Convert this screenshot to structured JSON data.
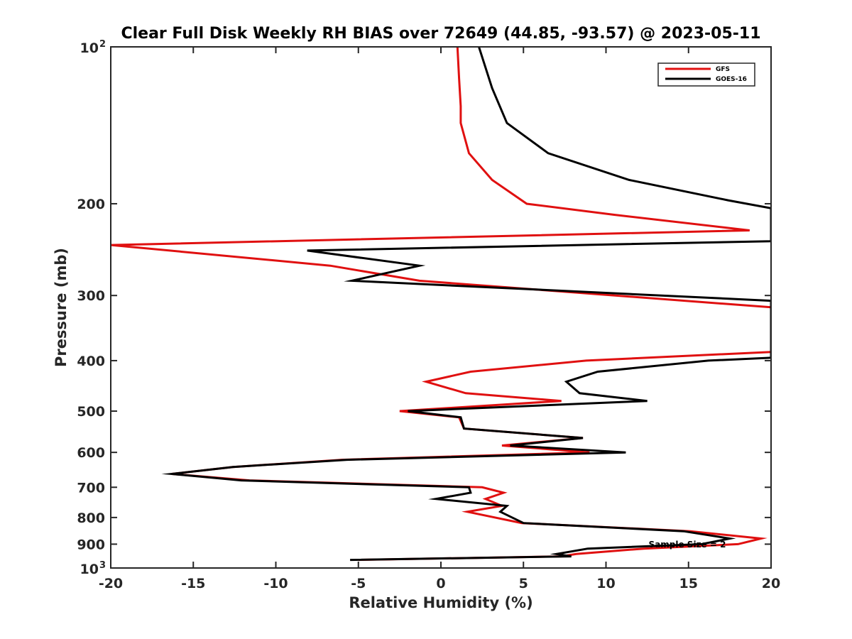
{
  "chart_data": {
    "type": "line",
    "title": "Clear Full Disk Weekly RH BIAS over 72649 (44.85, -93.57) @ 2023-05-11",
    "xlabel": "Relative Humidity (%)",
    "ylabel": "Pressure (mb)",
    "xlim": [
      -20,
      20
    ],
    "ylim": [
      100,
      1000
    ],
    "y_scale": "log",
    "y_reversed": true,
    "x_ticks": [
      -20,
      -15,
      -10,
      -5,
      0,
      5,
      10,
      15,
      20
    ],
    "x_tick_labels": [
      "-20",
      "-15",
      "-10",
      "-5",
      "0",
      "5",
      "10",
      "15",
      "20"
    ],
    "y_ticks": [
      200,
      300,
      400,
      500,
      600,
      700,
      800,
      900
    ],
    "y_tick_labels": [
      "200",
      "300",
      "400",
      "500",
      "600",
      "700",
      "800",
      "900"
    ],
    "y_edge_labels": [
      {
        "value": 100,
        "base": "10",
        "exp": "2"
      },
      {
        "value": 1000,
        "base": "10",
        "exp": "3"
      }
    ],
    "grid": false,
    "legend_position": "top-right",
    "annotation": "Sample Size = 2",
    "series": [
      {
        "name": "GFS",
        "color": "#e01010",
        "points": [
          [
            1.0,
            100
          ],
          [
            1.1,
            115
          ],
          [
            1.2,
            130
          ],
          [
            1.2,
            140
          ],
          [
            1.7,
            160
          ],
          [
            3.1,
            180
          ],
          [
            5.2,
            200
          ],
          [
            10.5,
            210
          ],
          [
            18.7,
            225
          ],
          [
            -20.0,
            240
          ],
          [
            -6.7,
            263
          ],
          [
            -1.3,
            281
          ],
          [
            20.0,
            316
          ],
          [
            20.0,
            385
          ],
          [
            8.8,
            400
          ],
          [
            1.8,
            420
          ],
          [
            -0.9,
            439
          ],
          [
            1.5,
            462
          ],
          [
            7.3,
            478
          ],
          [
            -2.5,
            500
          ],
          [
            1.1,
            514
          ],
          [
            1.4,
            540
          ],
          [
            8.6,
            563
          ],
          [
            3.7,
            582
          ],
          [
            9.0,
            600
          ],
          [
            -6.0,
            620
          ],
          [
            -12.6,
            640
          ],
          [
            -16.3,
            660
          ],
          [
            -11.6,
            679
          ],
          [
            2.5,
            700
          ],
          [
            3.8,
            717
          ],
          [
            2.7,
            737
          ],
          [
            3.7,
            760
          ],
          [
            1.6,
            780
          ],
          [
            4.9,
            820
          ],
          [
            15.1,
            850
          ],
          [
            19.4,
            878
          ],
          [
            18.0,
            900
          ],
          [
            12.3,
            918
          ],
          [
            8.2,
            940
          ],
          [
            7.3,
            950
          ],
          [
            -5.0,
            965
          ]
        ]
      },
      {
        "name": "GOES-16",
        "color": "#000000",
        "points": [
          [
            2.3,
            100
          ],
          [
            3.1,
            120
          ],
          [
            4.0,
            140
          ],
          [
            6.5,
            160
          ],
          [
            11.4,
            180
          ],
          [
            17.4,
            197
          ],
          [
            20.0,
            204
          ],
          [
            20.0,
            236
          ],
          [
            -8.1,
            246
          ],
          [
            -1.3,
            263
          ],
          [
            -5.4,
            281
          ],
          [
            20.0,
            307
          ],
          [
            20.0,
            395
          ],
          [
            16.2,
            400
          ],
          [
            9.5,
            420
          ],
          [
            7.6,
            439
          ],
          [
            8.4,
            462
          ],
          [
            12.5,
            478
          ],
          [
            -2.0,
            500
          ],
          [
            1.2,
            514
          ],
          [
            1.4,
            540
          ],
          [
            8.6,
            563
          ],
          [
            4.2,
            582
          ],
          [
            11.2,
            600
          ],
          [
            -5.7,
            620
          ],
          [
            -12.6,
            640
          ],
          [
            -16.3,
            660
          ],
          [
            -12.1,
            679
          ],
          [
            1.7,
            700
          ],
          [
            1.8,
            717
          ],
          [
            -0.3,
            737
          ],
          [
            4.0,
            760
          ],
          [
            3.6,
            780
          ],
          [
            5.0,
            820
          ],
          [
            14.7,
            850
          ],
          [
            17.5,
            878
          ],
          [
            15.8,
            900
          ],
          [
            8.9,
            918
          ],
          [
            7.0,
            940
          ],
          [
            7.9,
            950
          ],
          [
            -5.5,
            965
          ]
        ]
      }
    ]
  }
}
